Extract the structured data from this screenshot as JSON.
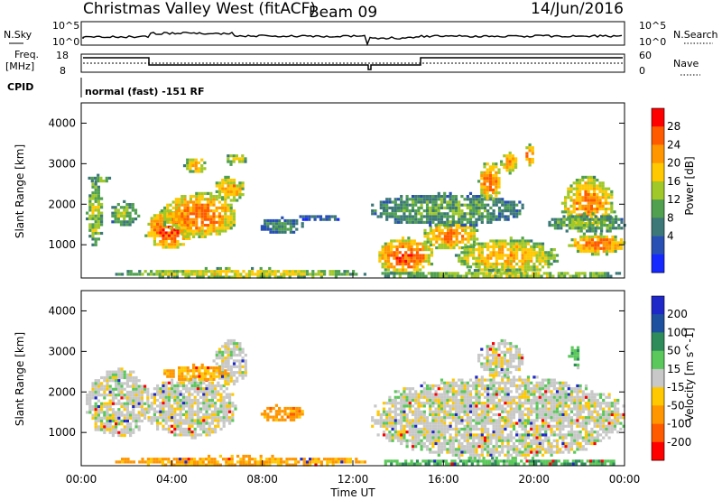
{
  "header": {
    "radar_title": "Christmas Valley West (fitACF)",
    "beam": "Beam 09",
    "date": "14/Jun/2016"
  },
  "summary_panels": {
    "nsky": {
      "label": "N.Sky",
      "ticks_left": [
        "10^5",
        "10^0"
      ],
      "ticks_right": [
        "10^5",
        "10^0"
      ],
      "right_label": "N.Search"
    },
    "freq": {
      "label_line1": "Freq.",
      "label_line2": "[MHz]",
      "ticks_left": [
        "18",
        "8"
      ],
      "ticks_right": [
        "60",
        "0"
      ],
      "right_label": "Nave"
    },
    "cpid": {
      "label": "CPID",
      "text": "normal (fast) -151 RF"
    }
  },
  "chart_data": [
    {
      "type": "heatmap",
      "title": "",
      "ylabel": "Slant Range [km]",
      "yticks": [
        "4000",
        "3000",
        "2000",
        "1000"
      ],
      "ytick_values": [
        4000,
        3000,
        2000,
        1000
      ],
      "ylim": [
        180,
        4500
      ],
      "xlim": [
        0,
        24
      ],
      "colorbar": {
        "label": "Power [dB]",
        "ticks": [
          "28",
          "24",
          "20",
          "16",
          "12",
          "8",
          "4"
        ],
        "colors": [
          "#ff0000",
          "#ff5a00",
          "#ff9600",
          "#ffc800",
          "#a0c828",
          "#50a050",
          "#3c7878",
          "#2850b4",
          "#1428ff"
        ]
      },
      "regions": [
        {
          "t0": 0.2,
          "t1": 0.9,
          "r0": 1000,
          "r1": 2600,
          "level": 0.55
        },
        {
          "t0": 0.3,
          "t1": 1.2,
          "r0": 2550,
          "r1": 2750,
          "level": 0.45
        },
        {
          "t0": 1.2,
          "t1": 2.5,
          "r0": 1500,
          "r1": 2100,
          "level": 0.5
        },
        {
          "t0": 2.8,
          "t1": 4.8,
          "r0": 900,
          "r1": 1900,
          "level": 0.92
        },
        {
          "t0": 3.5,
          "t1": 6.8,
          "r0": 1200,
          "r1": 2300,
          "level": 0.85
        },
        {
          "t0": 5.8,
          "t1": 7.2,
          "r0": 2100,
          "r1": 2700,
          "level": 0.75
        },
        {
          "t0": 4.5,
          "t1": 5.5,
          "r0": 2800,
          "r1": 3200,
          "level": 0.7
        },
        {
          "t0": 6.3,
          "t1": 7.3,
          "r0": 3000,
          "r1": 3300,
          "level": 0.6
        },
        {
          "t0": 7.8,
          "t1": 9.8,
          "r0": 1300,
          "r1": 1700,
          "level": 0.3
        },
        {
          "t0": 9.5,
          "t1": 11.5,
          "r0": 1600,
          "r1": 1800,
          "level": 0.2
        },
        {
          "t0": 1.5,
          "t1": 12.5,
          "r0": 200,
          "r1": 450,
          "level": 0.6
        },
        {
          "t0": 13.0,
          "t1": 15.5,
          "r0": 300,
          "r1": 1200,
          "level": 0.9
        },
        {
          "t0": 15.0,
          "t1": 17.5,
          "r0": 900,
          "r1": 1600,
          "level": 0.8
        },
        {
          "t0": 12.8,
          "t1": 19.5,
          "r0": 1500,
          "r1": 2300,
          "level": 0.4
        },
        {
          "t0": 16.5,
          "t1": 21.0,
          "r0": 300,
          "r1": 1200,
          "level": 0.7
        },
        {
          "t0": 17.5,
          "t1": 18.5,
          "r0": 2100,
          "r1": 3100,
          "level": 0.85
        },
        {
          "t0": 18.5,
          "t1": 19.2,
          "r0": 2800,
          "r1": 3300,
          "level": 0.8
        },
        {
          "t0": 19.5,
          "t1": 20.0,
          "r0": 3000,
          "r1": 3500,
          "level": 0.85
        },
        {
          "t0": 21.2,
          "t1": 23.5,
          "r0": 1400,
          "r1": 2700,
          "level": 0.8
        },
        {
          "t0": 21.5,
          "t1": 24.0,
          "r0": 800,
          "r1": 1300,
          "level": 0.85
        },
        {
          "t0": 20.5,
          "t1": 24.0,
          "r0": 1300,
          "r1": 1800,
          "level": 0.45
        },
        {
          "t0": 13.0,
          "t1": 24.0,
          "r0": 200,
          "r1": 400,
          "level": 0.55
        }
      ]
    },
    {
      "type": "heatmap",
      "title": "",
      "ylabel": "Slant Range [km]",
      "xlabel": "Time UT",
      "xticks": [
        "00:00",
        "04:00",
        "08:00",
        "12:00",
        "16:00",
        "20:00",
        "00:00"
      ],
      "xtick_values": [
        0,
        4,
        8,
        12,
        16,
        20,
        24
      ],
      "yticks": [
        "4000",
        "3000",
        "2000",
        "1000"
      ],
      "ytick_values": [
        4000,
        3000,
        2000,
        1000
      ],
      "ylim": [
        180,
        4500
      ],
      "xlim": [
        0,
        24
      ],
      "colorbar": {
        "label": "Velocity [m s^-1]",
        "ticks": [
          "200",
          "100",
          "50",
          "15",
          "-15",
          "-50",
          "-100",
          "-200"
        ],
        "colors": [
          "#1e28c8",
          "#1e50a0",
          "#2d8c5a",
          "#5ac85a",
          "#c8c8c8",
          "#ffc800",
          "#ff9600",
          "#ff5a00",
          "#ff0000"
        ]
      },
      "regions": [
        {
          "t0": 0.2,
          "t1": 3.0,
          "r0": 900,
          "r1": 2600,
          "level": 0.5
        },
        {
          "t0": 2.8,
          "t1": 6.8,
          "r0": 900,
          "r1": 2400,
          "level": 0.5
        },
        {
          "t0": 5.8,
          "t1": 7.3,
          "r0": 2200,
          "r1": 3300,
          "level": 0.5
        },
        {
          "t0": 3.5,
          "t1": 6.5,
          "r0": 2300,
          "r1": 2700,
          "level": 0.3
        },
        {
          "t0": 7.8,
          "t1": 9.8,
          "r0": 1300,
          "r1": 1700,
          "level": 0.25
        },
        {
          "t0": 1.5,
          "t1": 12.5,
          "r0": 200,
          "r1": 450,
          "level": 0.28
        },
        {
          "t0": 12.8,
          "t1": 24.0,
          "r0": 400,
          "r1": 2400,
          "level": 0.5
        },
        {
          "t0": 17.5,
          "t1": 19.5,
          "r0": 2400,
          "r1": 3300,
          "level": 0.5
        },
        {
          "t0": 21.5,
          "t1": 22.0,
          "r0": 2600,
          "r1": 3200,
          "level": 0.65
        },
        {
          "t0": 13.0,
          "t1": 24.0,
          "r0": 200,
          "r1": 400,
          "level": 0.65
        }
      ]
    }
  ]
}
